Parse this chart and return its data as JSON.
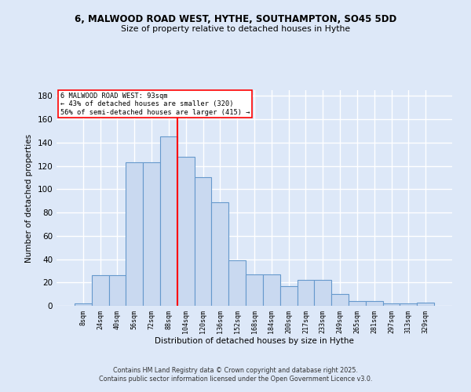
{
  "title1": "6, MALWOOD ROAD WEST, HYTHE, SOUTHAMPTON, SO45 5DD",
  "title2": "Size of property relative to detached houses in Hythe",
  "xlabel": "Distribution of detached houses by size in Hythe",
  "ylabel": "Number of detached properties",
  "categories": [
    "8sqm",
    "24sqm",
    "40sqm",
    "56sqm",
    "72sqm",
    "88sqm",
    "104sqm",
    "120sqm",
    "136sqm",
    "152sqm",
    "168sqm",
    "184sqm",
    "200sqm",
    "217sqm",
    "233sqm",
    "249sqm",
    "265sqm",
    "281sqm",
    "297sqm",
    "313sqm",
    "329sqm"
  ],
  "values": [
    2,
    26,
    26,
    123,
    123,
    145,
    128,
    110,
    89,
    39,
    27,
    27,
    17,
    22,
    22,
    10,
    4,
    4,
    2,
    2,
    3
  ],
  "bar_color": "#c9d9f0",
  "bar_edge_color": "#6699cc",
  "vline_x": 5.5,
  "vline_color": "red",
  "annotation_text": "6 MALWOOD ROAD WEST: 93sqm\n← 43% of detached houses are smaller (320)\n56% of semi-detached houses are larger (415) →",
  "annotation_box_color": "white",
  "annotation_box_edge": "red",
  "ylim": [
    0,
    185
  ],
  "yticks": [
    0,
    20,
    40,
    60,
    80,
    100,
    120,
    140,
    160,
    180
  ],
  "footer1": "Contains HM Land Registry data © Crown copyright and database right 2025.",
  "footer2": "Contains public sector information licensed under the Open Government Licence v3.0.",
  "bg_color": "#dde8f8",
  "grid_color": "white"
}
